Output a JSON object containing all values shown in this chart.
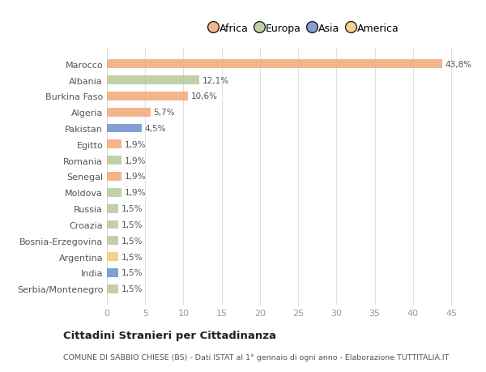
{
  "countries": [
    "Serbia/Montenegro",
    "India",
    "Argentina",
    "Bosnia-Erzegovina",
    "Croazia",
    "Russia",
    "Moldova",
    "Senegal",
    "Romania",
    "Egitto",
    "Pakistan",
    "Algeria",
    "Burkina Faso",
    "Albania",
    "Marocco"
  ],
  "values": [
    1.5,
    1.5,
    1.5,
    1.5,
    1.5,
    1.5,
    1.9,
    1.9,
    1.9,
    1.9,
    4.5,
    5.7,
    10.6,
    12.1,
    43.8
  ],
  "labels": [
    "1,5%",
    "1,5%",
    "1,5%",
    "1,5%",
    "1,5%",
    "1,5%",
    "1,9%",
    "1,9%",
    "1,9%",
    "1,9%",
    "4,5%",
    "5,7%",
    "10,6%",
    "12,1%",
    "43,8%"
  ],
  "colors": [
    "#b5c99a",
    "#6e8fcb",
    "#f5c87a",
    "#b5c99a",
    "#b5c99a",
    "#b5c99a",
    "#b5c99a",
    "#f0a878",
    "#b5c99a",
    "#f0a878",
    "#6e8fcb",
    "#f0a878",
    "#f0a878",
    "#b5c99a",
    "#f0a878"
  ],
  "continent": [
    "Europa",
    "Asia",
    "America",
    "Europa",
    "Europa",
    "Europa",
    "Europa",
    "Africa",
    "Europa",
    "Africa",
    "Asia",
    "Africa",
    "Africa",
    "Europa",
    "Africa"
  ],
  "legend_colors": {
    "Africa": "#f0a878",
    "Europa": "#b5c99a",
    "Asia": "#6e8fcb",
    "America": "#f5c87a"
  },
  "legend_order": [
    "Africa",
    "Europa",
    "Asia",
    "America"
  ],
  "title": "Cittadini Stranieri per Cittadinanza",
  "subtitle": "COMUNE DI SABBIO CHIESE (BS) - Dati ISTAT al 1° gennaio di ogni anno - Elaborazione TUTTITALIA.IT",
  "xlim": [
    0,
    47
  ],
  "xticks": [
    0,
    5,
    10,
    15,
    20,
    25,
    30,
    35,
    40,
    45
  ],
  "background_color": "#ffffff",
  "grid_color": "#e0e0e0"
}
